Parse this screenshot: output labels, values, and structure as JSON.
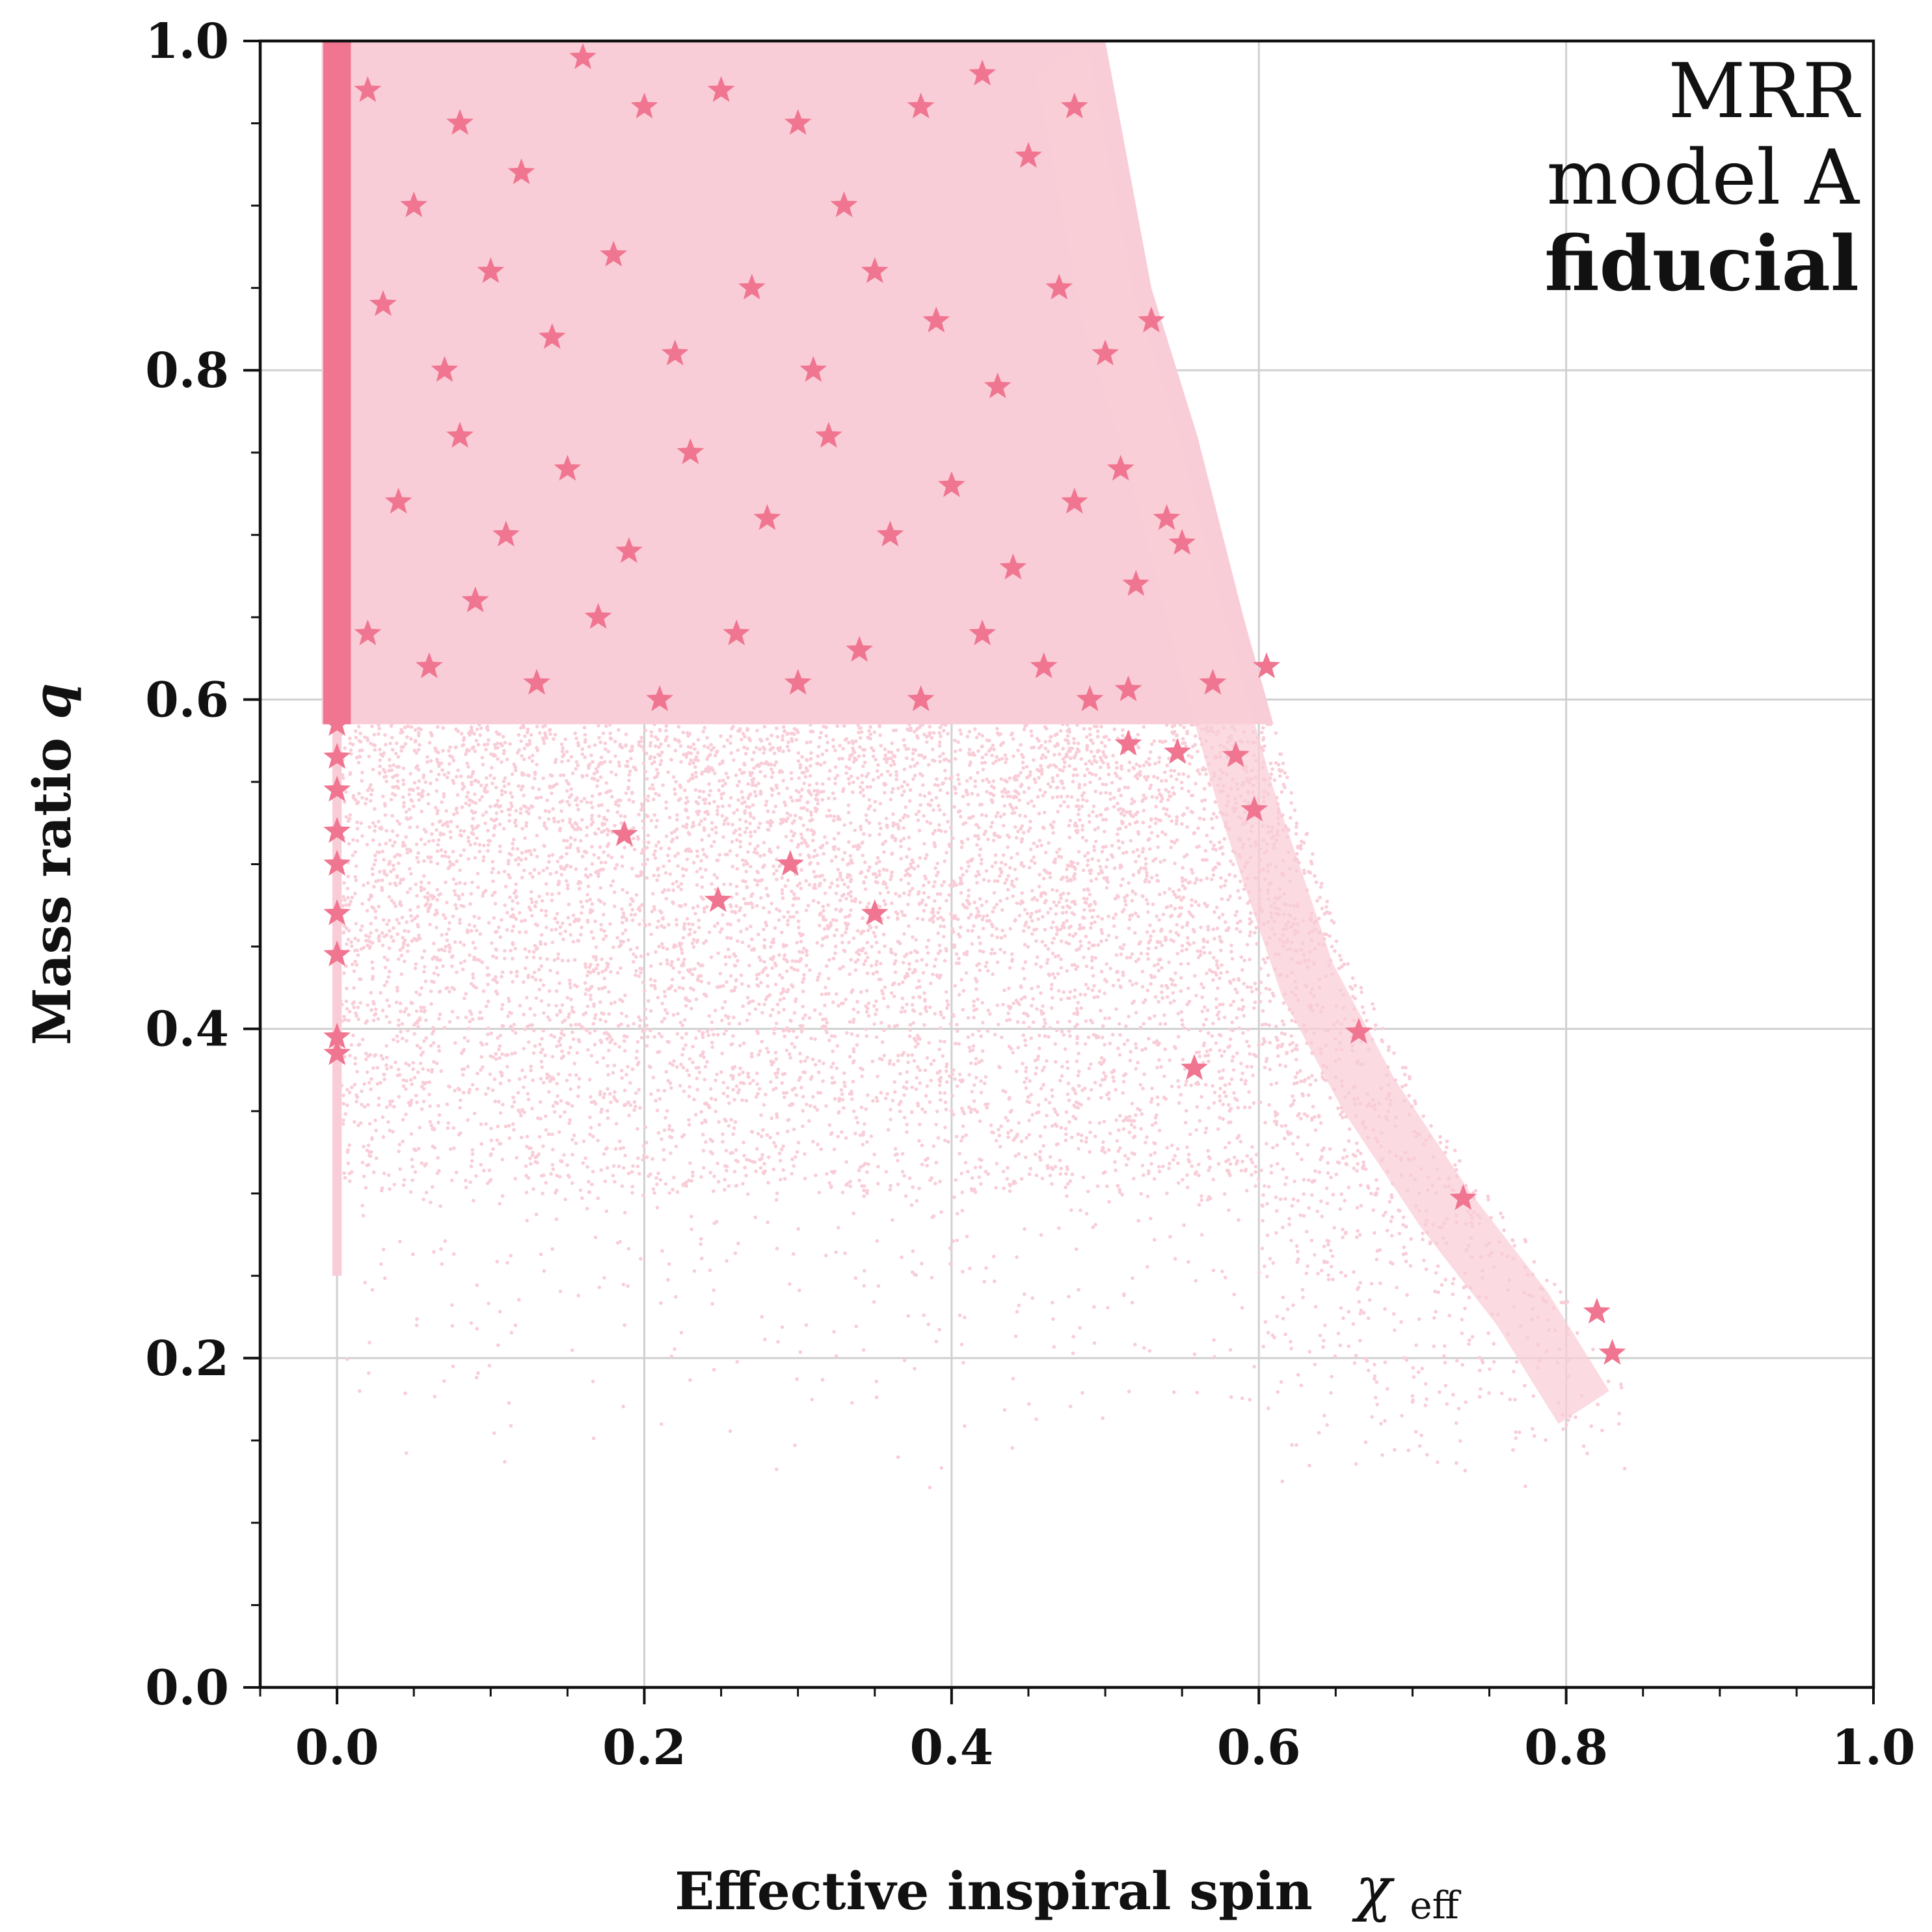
{
  "chart_data": {
    "type": "scatter",
    "xlabel": "Effective inspiral spin",
    "xlabel_symbol": "χ",
    "xlabel_subscript": "eff",
    "ylabel_prefix": "Mass ratio ",
    "ylabel_symbol": "q",
    "xlim": [
      -0.05,
      1.0
    ],
    "ylim": [
      0.0,
      1.0
    ],
    "xticks": [
      "0.0",
      "0.2",
      "0.4",
      "0.6",
      "0.8",
      "1.0"
    ],
    "yticks": [
      "0.0",
      "0.2",
      "0.4",
      "0.6",
      "0.8",
      "1.0"
    ],
    "xtick_values": [
      0.0,
      0.2,
      0.4,
      0.6,
      0.8,
      1.0
    ],
    "ytick_values": [
      0.0,
      0.2,
      0.4,
      0.6,
      0.8,
      1.0
    ],
    "grid": true,
    "annotations": [
      "MRR",
      "model A",
      "fiducial"
    ],
    "annotation_placement": "top-right",
    "colors": {
      "population": "#f9cdd7",
      "stars": "#f07590",
      "axes": "#111111",
      "grid": "#d0d0d0"
    },
    "series": [
      {
        "kind": "population-cloud",
        "dense_region": {
          "x": [
            -0.01,
            0.5
          ],
          "q": [
            0.585,
            1.0
          ]
        },
        "upper_boundary": [
          [
            0.5,
            1.0
          ],
          [
            0.53,
            0.85
          ],
          [
            0.56,
            0.76
          ],
          [
            0.59,
            0.65
          ],
          [
            0.62,
            0.55
          ],
          [
            0.66,
            0.44
          ],
          [
            0.7,
            0.37
          ],
          [
            0.75,
            0.3
          ],
          [
            0.8,
            0.24
          ],
          [
            0.84,
            0.18
          ]
        ],
        "sparse_q_range": [
          0.12,
          0.585
        ]
      },
      {
        "kind": "star-markers",
        "points": [
          [
            0.0,
            0.585
          ],
          [
            0.0,
            0.565
          ],
          [
            0.0,
            0.545
          ],
          [
            0.0,
            0.52
          ],
          [
            0.0,
            0.5
          ],
          [
            0.0,
            0.47
          ],
          [
            0.0,
            0.445
          ],
          [
            0.0,
            0.395
          ],
          [
            0.0,
            0.385
          ],
          [
            0.187,
            0.518
          ],
          [
            0.248,
            0.478
          ],
          [
            0.295,
            0.5
          ],
          [
            0.35,
            0.47
          ],
          [
            0.515,
            0.606
          ],
          [
            0.515,
            0.573
          ],
          [
            0.547,
            0.568
          ],
          [
            0.57,
            0.61
          ],
          [
            0.585,
            0.566
          ],
          [
            0.597,
            0.533
          ],
          [
            0.605,
            0.62
          ],
          [
            0.558,
            0.376
          ],
          [
            0.665,
            0.398
          ],
          [
            0.733,
            0.297
          ],
          [
            0.82,
            0.228
          ],
          [
            0.83,
            0.203
          ],
          [
            0.02,
            0.97
          ],
          [
            0.05,
            0.9
          ],
          [
            0.08,
            0.95
          ],
          [
            0.12,
            0.92
          ],
          [
            0.16,
            0.99
          ],
          [
            0.2,
            0.96
          ],
          [
            0.25,
            0.97
          ],
          [
            0.3,
            0.95
          ],
          [
            0.33,
            0.9
          ],
          [
            0.38,
            0.96
          ],
          [
            0.42,
            0.98
          ],
          [
            0.45,
            0.93
          ],
          [
            0.48,
            0.96
          ],
          [
            0.03,
            0.84
          ],
          [
            0.07,
            0.8
          ],
          [
            0.1,
            0.86
          ],
          [
            0.14,
            0.82
          ],
          [
            0.18,
            0.87
          ],
          [
            0.22,
            0.81
          ],
          [
            0.27,
            0.85
          ],
          [
            0.31,
            0.8
          ],
          [
            0.35,
            0.86
          ],
          [
            0.39,
            0.83
          ],
          [
            0.43,
            0.79
          ],
          [
            0.47,
            0.85
          ],
          [
            0.5,
            0.81
          ],
          [
            0.53,
            0.83
          ],
          [
            0.04,
            0.72
          ],
          [
            0.08,
            0.76
          ],
          [
            0.11,
            0.7
          ],
          [
            0.15,
            0.74
          ],
          [
            0.19,
            0.69
          ],
          [
            0.23,
            0.75
          ],
          [
            0.28,
            0.71
          ],
          [
            0.32,
            0.76
          ],
          [
            0.36,
            0.7
          ],
          [
            0.4,
            0.73
          ],
          [
            0.44,
            0.68
          ],
          [
            0.48,
            0.72
          ],
          [
            0.51,
            0.74
          ],
          [
            0.54,
            0.71
          ],
          [
            0.55,
            0.695
          ],
          [
            0.02,
            0.64
          ],
          [
            0.06,
            0.62
          ],
          [
            0.09,
            0.66
          ],
          [
            0.13,
            0.61
          ],
          [
            0.17,
            0.65
          ],
          [
            0.21,
            0.6
          ],
          [
            0.26,
            0.64
          ],
          [
            0.3,
            0.61
          ],
          [
            0.34,
            0.63
          ],
          [
            0.38,
            0.6
          ],
          [
            0.42,
            0.64
          ],
          [
            0.46,
            0.62
          ],
          [
            0.49,
            0.6
          ],
          [
            0.52,
            0.67
          ]
        ]
      }
    ]
  }
}
